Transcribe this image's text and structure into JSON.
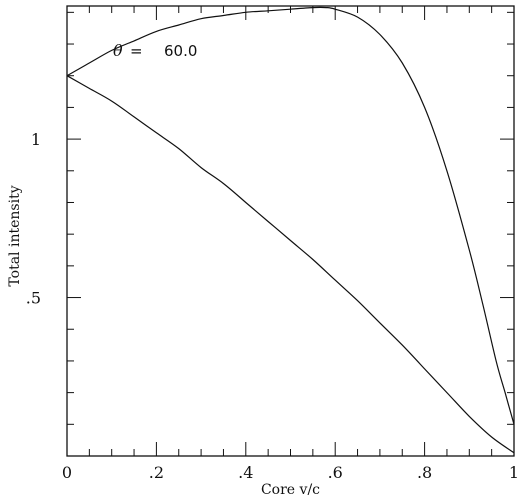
{
  "chart_data": {
    "type": "line",
    "title": "",
    "xlabel": "Core v/c",
    "ylabel": "Total intensity",
    "xlim": [
      0,
      1
    ],
    "ylim": [
      0,
      1.42
    ],
    "xticks": [
      {
        "v": 0,
        "label": "0"
      },
      {
        "v": 0.2,
        "label": ".2"
      },
      {
        "v": 0.4,
        "label": ".4"
      },
      {
        "v": 0.6,
        "label": ".6"
      },
      {
        "v": 0.8,
        "label": ".8"
      },
      {
        "v": 1.0,
        "label": "1"
      }
    ],
    "yticks": [
      {
        "v": 0.5,
        "label": ".5"
      },
      {
        "v": 1.0,
        "label": "1"
      }
    ],
    "grid": false,
    "annotation": {
      "symbol": "θ",
      "equals": "=",
      "value": "60.0"
    },
    "series": [
      {
        "x": [
          0,
          0.05,
          0.1,
          0.15,
          0.2,
          0.25,
          0.3,
          0.35,
          0.4,
          0.45,
          0.5,
          0.55,
          0.58,
          0.6,
          0.65,
          0.7,
          0.75,
          0.8,
          0.85,
          0.9,
          0.93,
          0.96,
          0.98,
          1.0
        ],
        "values": [
          1.2,
          1.24,
          1.28,
          1.31,
          1.34,
          1.36,
          1.38,
          1.39,
          1.4,
          1.405,
          1.41,
          1.415,
          1.415,
          1.41,
          1.385,
          1.33,
          1.24,
          1.1,
          0.9,
          0.65,
          0.48,
          0.3,
          0.2,
          0.1
        ]
      },
      {
        "x": [
          0,
          0.05,
          0.1,
          0.15,
          0.2,
          0.25,
          0.3,
          0.35,
          0.4,
          0.45,
          0.5,
          0.55,
          0.6,
          0.65,
          0.7,
          0.75,
          0.8,
          0.85,
          0.9,
          0.95,
          1.0
        ],
        "values": [
          1.2,
          1.16,
          1.12,
          1.07,
          1.02,
          0.97,
          0.91,
          0.86,
          0.8,
          0.74,
          0.68,
          0.62,
          0.555,
          0.49,
          0.42,
          0.35,
          0.275,
          0.2,
          0.125,
          0.06,
          0.01
        ]
      }
    ]
  }
}
